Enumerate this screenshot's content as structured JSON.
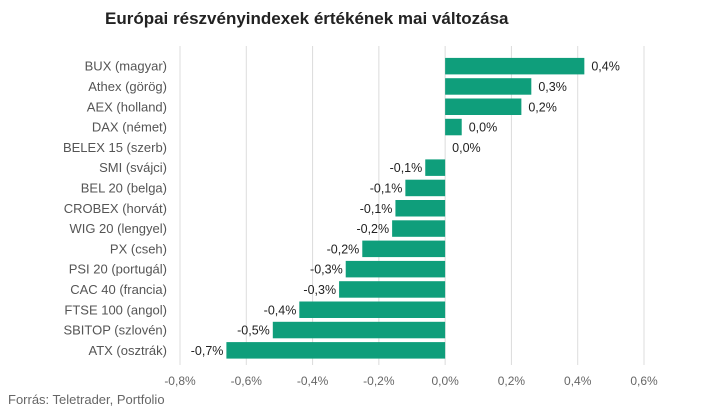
{
  "chart_data": {
    "type": "bar",
    "orientation": "horizontal",
    "title": "Európai részvényindexek értékének mai változása",
    "source": "Forrás: Teletrader, Portfolio",
    "color": "#0f9e7b",
    "categories": [
      "BUX (magyar)",
      "Athex (görög)",
      "AEX (holland)",
      "DAX (német)",
      "BELEX 15 (szerb)",
      "SMI (svájci)",
      "BEL 20 (belga)",
      "CROBEX (horvát)",
      "WIG 20 (lengyel)",
      "PX (cseh)",
      "PSI 20 (portugál)",
      "CAC 40 (francia)",
      "FTSE 100 (angol)",
      "SBITOP (szlovén)",
      "ATX (osztrák)"
    ],
    "values": [
      0.42,
      0.26,
      0.23,
      0.05,
      0.0,
      -0.06,
      -0.12,
      -0.15,
      -0.16,
      -0.25,
      -0.3,
      -0.32,
      -0.44,
      -0.52,
      -0.66
    ],
    "value_labels": [
      "0,4%",
      "0,3%",
      "0,2%",
      "0,0%",
      "0,0%",
      "-0,1%",
      "-0,1%",
      "-0,1%",
      "-0,2%",
      "-0,2%",
      "-0,3%",
      "-0,3%",
      "-0,4%",
      "-0,5%",
      "-0,7%"
    ],
    "xlim": [
      -0.8,
      0.6
    ],
    "xticks": [
      -0.8,
      -0.6,
      -0.4,
      -0.2,
      0.0,
      0.2,
      0.4,
      0.6
    ],
    "xtick_labels": [
      "-0,8%",
      "-0,6%",
      "-0,4%",
      "-0,2%",
      "0,0%",
      "0,2%",
      "0,4%",
      "0,6%"
    ],
    "grid": "vertical",
    "legend": "none"
  }
}
